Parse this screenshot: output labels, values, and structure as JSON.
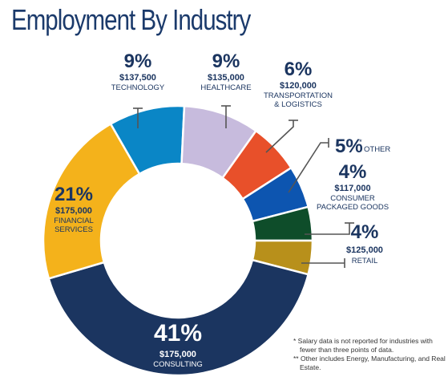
{
  "title": "Employment By Industry",
  "chart_data": {
    "type": "pie",
    "title": "Employment By Industry",
    "segments": [
      {
        "label": "TECHNOLOGY",
        "label2": "",
        "percent": 9,
        "display": "9%",
        "salary": "$137,500",
        "color": "#0a86c6"
      },
      {
        "label": "HEALTHCARE",
        "label2": "",
        "percent": 9,
        "display": "9%",
        "salary": "$135,000",
        "color": "#c7bbdd"
      },
      {
        "label": "TRANSPORTATION",
        "label2": "& LOGISTICS",
        "percent": 6,
        "display": "6%",
        "salary": "$120,000",
        "color": "#e8502a"
      },
      {
        "label": "OTHER",
        "label2": "",
        "percent": 5,
        "display": "5%",
        "salary": "",
        "color": "#0d55b0"
      },
      {
        "label": "CONSUMER",
        "label2": "PACKAGED GOODS",
        "percent": 4,
        "display": "4%",
        "salary": "$117,000",
        "color": "#0e4d2a"
      },
      {
        "label": "RETAIL",
        "label2": "",
        "percent": 4,
        "display": "4%",
        "salary": "$125,000",
        "color": "#b8901b"
      },
      {
        "label": "CONSULTING",
        "label2": "",
        "percent": 41,
        "display": "41%",
        "salary": "$175,000",
        "color": "#1b3560"
      },
      {
        "label": "FINANCIAL",
        "label2": "SERVICES",
        "percent": 21,
        "display": "21%",
        "salary": "$175,000",
        "color": "#f4b21b"
      }
    ],
    "other_mark": "*"
  },
  "notes": [
    "* Salary data is not reported for industries with fewer than three points of data.",
    "** Other includes Energy, Manufacturing, and Real Estate."
  ]
}
